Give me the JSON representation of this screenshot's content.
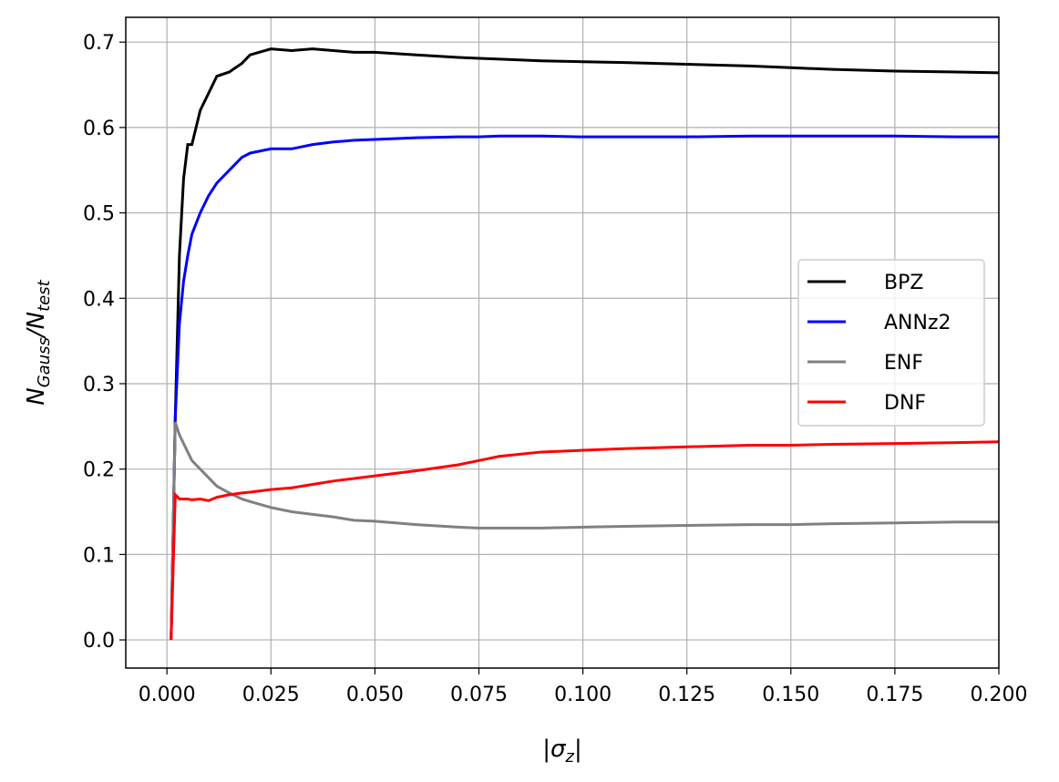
{
  "chart_data": {
    "type": "line",
    "xlabel": [
      "|σ",
      "z",
      "|"
    ],
    "ylabel": [
      "N",
      "Gauss",
      "/N",
      "test"
    ],
    "x": [
      0.001,
      0.002,
      0.003,
      0.004,
      0.005,
      0.006,
      0.008,
      0.01,
      0.012,
      0.015,
      0.018,
      0.02,
      0.025,
      0.03,
      0.035,
      0.04,
      0.045,
      0.05,
      0.06,
      0.07,
      0.075,
      0.08,
      0.09,
      0.1,
      0.11,
      0.125,
      0.14,
      0.15,
      0.16,
      0.175,
      0.19,
      0.2
    ],
    "series": [
      {
        "name": "BPZ",
        "color": "#000000",
        "values": [
          0,
          0.26,
          0.45,
          0.54,
          0.58,
          0.58,
          0.62,
          0.64,
          0.66,
          0.665,
          0.675,
          0.685,
          0.692,
          0.69,
          0.692,
          0.69,
          0.688,
          0.688,
          0.685,
          0.682,
          0.681,
          0.68,
          0.678,
          0.677,
          0.676,
          0.674,
          0.672,
          0.67,
          0.668,
          0.666,
          0.665,
          0.664
        ]
      },
      {
        "name": "ANNz2",
        "color": "#0000ff",
        "values": [
          0,
          0.26,
          0.37,
          0.42,
          0.45,
          0.475,
          0.5,
          0.52,
          0.535,
          0.55,
          0.565,
          0.57,
          0.575,
          0.575,
          0.58,
          0.583,
          0.585,
          0.586,
          0.588,
          0.589,
          0.589,
          0.59,
          0.59,
          0.589,
          0.589,
          0.589,
          0.59,
          0.59,
          0.59,
          0.59,
          0.589,
          0.589
        ]
      },
      {
        "name": "ENF",
        "color": "#808080",
        "values": [
          0,
          0.255,
          0.24,
          0.23,
          0.22,
          0.21,
          0.2,
          0.19,
          0.18,
          0.172,
          0.165,
          0.162,
          0.155,
          0.15,
          0.147,
          0.144,
          0.14,
          0.139,
          0.135,
          0.132,
          0.131,
          0.131,
          0.131,
          0.132,
          0.133,
          0.134,
          0.135,
          0.135,
          0.136,
          0.137,
          0.138,
          0.138
        ]
      },
      {
        "name": "DNF",
        "color": "#ff0000",
        "values": [
          0,
          0.17,
          0.165,
          0.165,
          0.165,
          0.164,
          0.165,
          0.163,
          0.167,
          0.17,
          0.172,
          0.173,
          0.176,
          0.178,
          0.182,
          0.186,
          0.189,
          0.192,
          0.198,
          0.205,
          0.21,
          0.215,
          0.22,
          0.222,
          0.224,
          0.226,
          0.228,
          0.228,
          0.229,
          0.23,
          0.231,
          0.232
        ]
      }
    ],
    "xlim": [
      -0.0099,
      0.2
    ],
    "ylim": [
      -0.033,
      0.729
    ],
    "xticks": [
      {
        "value": 0,
        "label": "0.000"
      },
      0.025,
      {
        "value": 0.05,
        "label": "0.050"
      },
      0.075,
      {
        "value": 0.1,
        "label": "0.100"
      },
      0.125,
      {
        "value": 0.15,
        "label": "0.150"
      },
      0.175,
      {
        "value": 0.2,
        "label": "0.200"
      }
    ],
    "yticks": [
      {
        "value": 0,
        "label": "0.0"
      },
      0.1,
      0.2,
      0.3,
      0.4,
      0.5,
      0.6,
      0.7
    ],
    "grid": true,
    "legend": "center right"
  }
}
